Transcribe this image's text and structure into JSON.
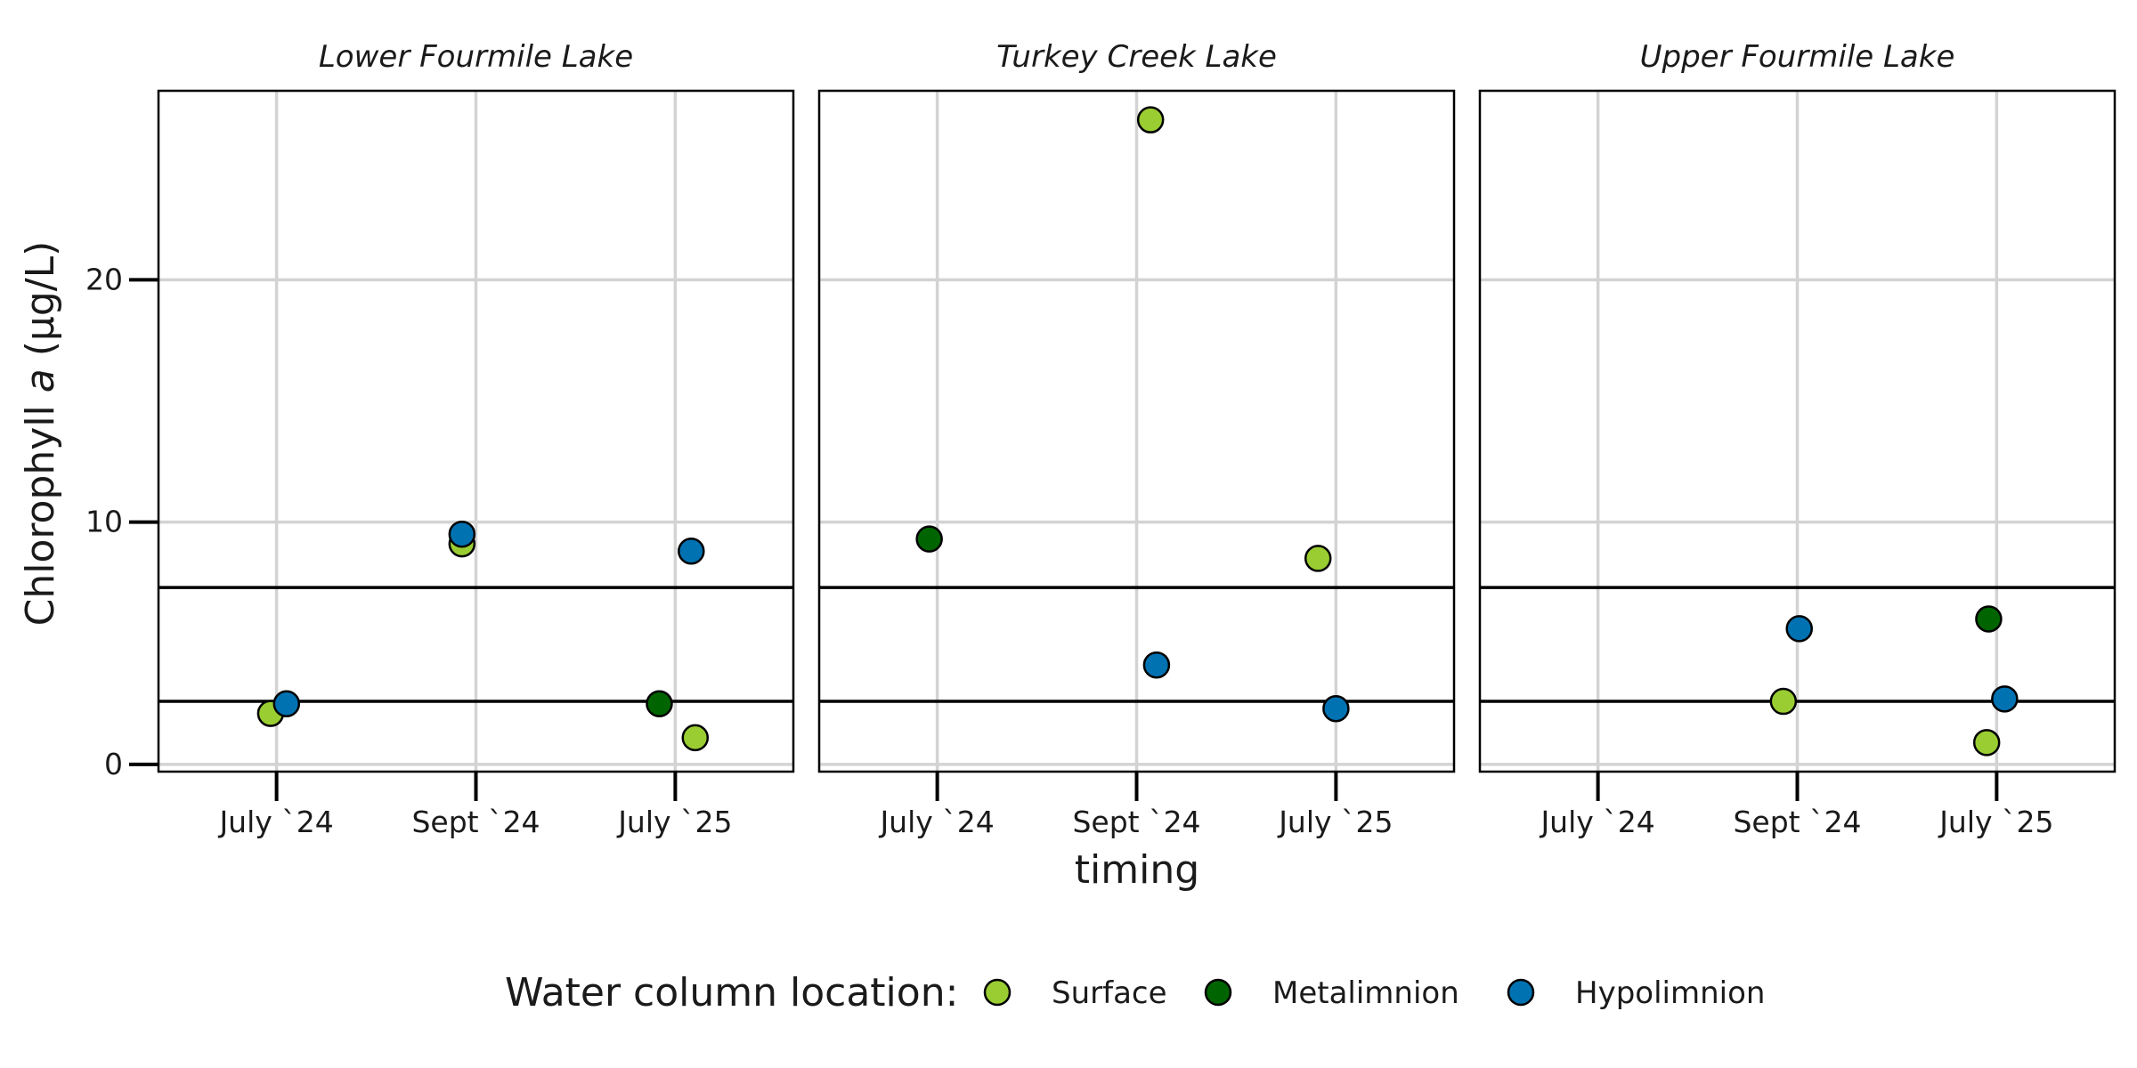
{
  "chart_data": {
    "type": "scatter",
    "title": "",
    "xlabel": "timing",
    "ylabel_main": "Chlorophyll ",
    "ylabel_italic": "a",
    "ylabel_unit": " (µg/L)",
    "categories": [
      "July `24",
      "Sept `24",
      "July `25"
    ],
    "ylim": [
      -0.3,
      27.8
    ],
    "yticks": [
      0,
      10,
      20
    ],
    "reference_lines": [
      2.6,
      7.3
    ],
    "grid": true,
    "legend": {
      "title": "Water column location:",
      "placement": "bottom",
      "items": [
        {
          "name": "Surface",
          "color": "#9ACD32"
        },
        {
          "name": "Metalimnion",
          "color": "#006400"
        },
        {
          "name": "Hypolimnion",
          "color": "#0072B2"
        }
      ]
    },
    "facets": [
      {
        "name": "Lower Fourmile Lake",
        "points": [
          {
            "x": "July `24",
            "y": 2.1,
            "series": "Surface",
            "jitter": -0.03
          },
          {
            "x": "July `24",
            "y": 2.5,
            "series": "Hypolimnion",
            "jitter": 0.05
          },
          {
            "x": "Sept `24",
            "y": 9.1,
            "series": "Surface",
            "jitter": -0.07
          },
          {
            "x": "Sept `24",
            "y": 9.5,
            "series": "Hypolimnion",
            "jitter": -0.07
          },
          {
            "x": "July `25",
            "y": 2.5,
            "series": "Metalimnion",
            "jitter": -0.08
          },
          {
            "x": "July `25",
            "y": 1.1,
            "series": "Surface",
            "jitter": 0.1
          },
          {
            "x": "July `25",
            "y": 8.8,
            "series": "Hypolimnion",
            "jitter": 0.08
          }
        ]
      },
      {
        "name": "Turkey Creek Lake",
        "points": [
          {
            "x": "July `24",
            "y": 9.3,
            "series": "Metalimnion",
            "jitter": -0.04
          },
          {
            "x": "Sept `24",
            "y": 26.6,
            "series": "Surface",
            "jitter": 0.07
          },
          {
            "x": "Sept `24",
            "y": 4.1,
            "series": "Hypolimnion",
            "jitter": 0.1
          },
          {
            "x": "July `25",
            "y": 8.5,
            "series": "Surface",
            "jitter": -0.09
          },
          {
            "x": "July `25",
            "y": 2.3,
            "series": "Hypolimnion",
            "jitter": 0.0
          }
        ]
      },
      {
        "name": "Upper Fourmile Lake",
        "points": [
          {
            "x": "Sept `24",
            "y": 2.6,
            "series": "Surface",
            "jitter": -0.07
          },
          {
            "x": "Sept `24",
            "y": 5.6,
            "series": "Hypolimnion",
            "jitter": 0.01
          },
          {
            "x": "July `25",
            "y": 6.0,
            "series": "Metalimnion",
            "jitter": -0.04
          },
          {
            "x": "July `25",
            "y": 0.9,
            "series": "Surface",
            "jitter": -0.05
          },
          {
            "x": "July `25",
            "y": 2.7,
            "series": "Hypolimnion",
            "jitter": 0.04
          }
        ]
      }
    ]
  }
}
